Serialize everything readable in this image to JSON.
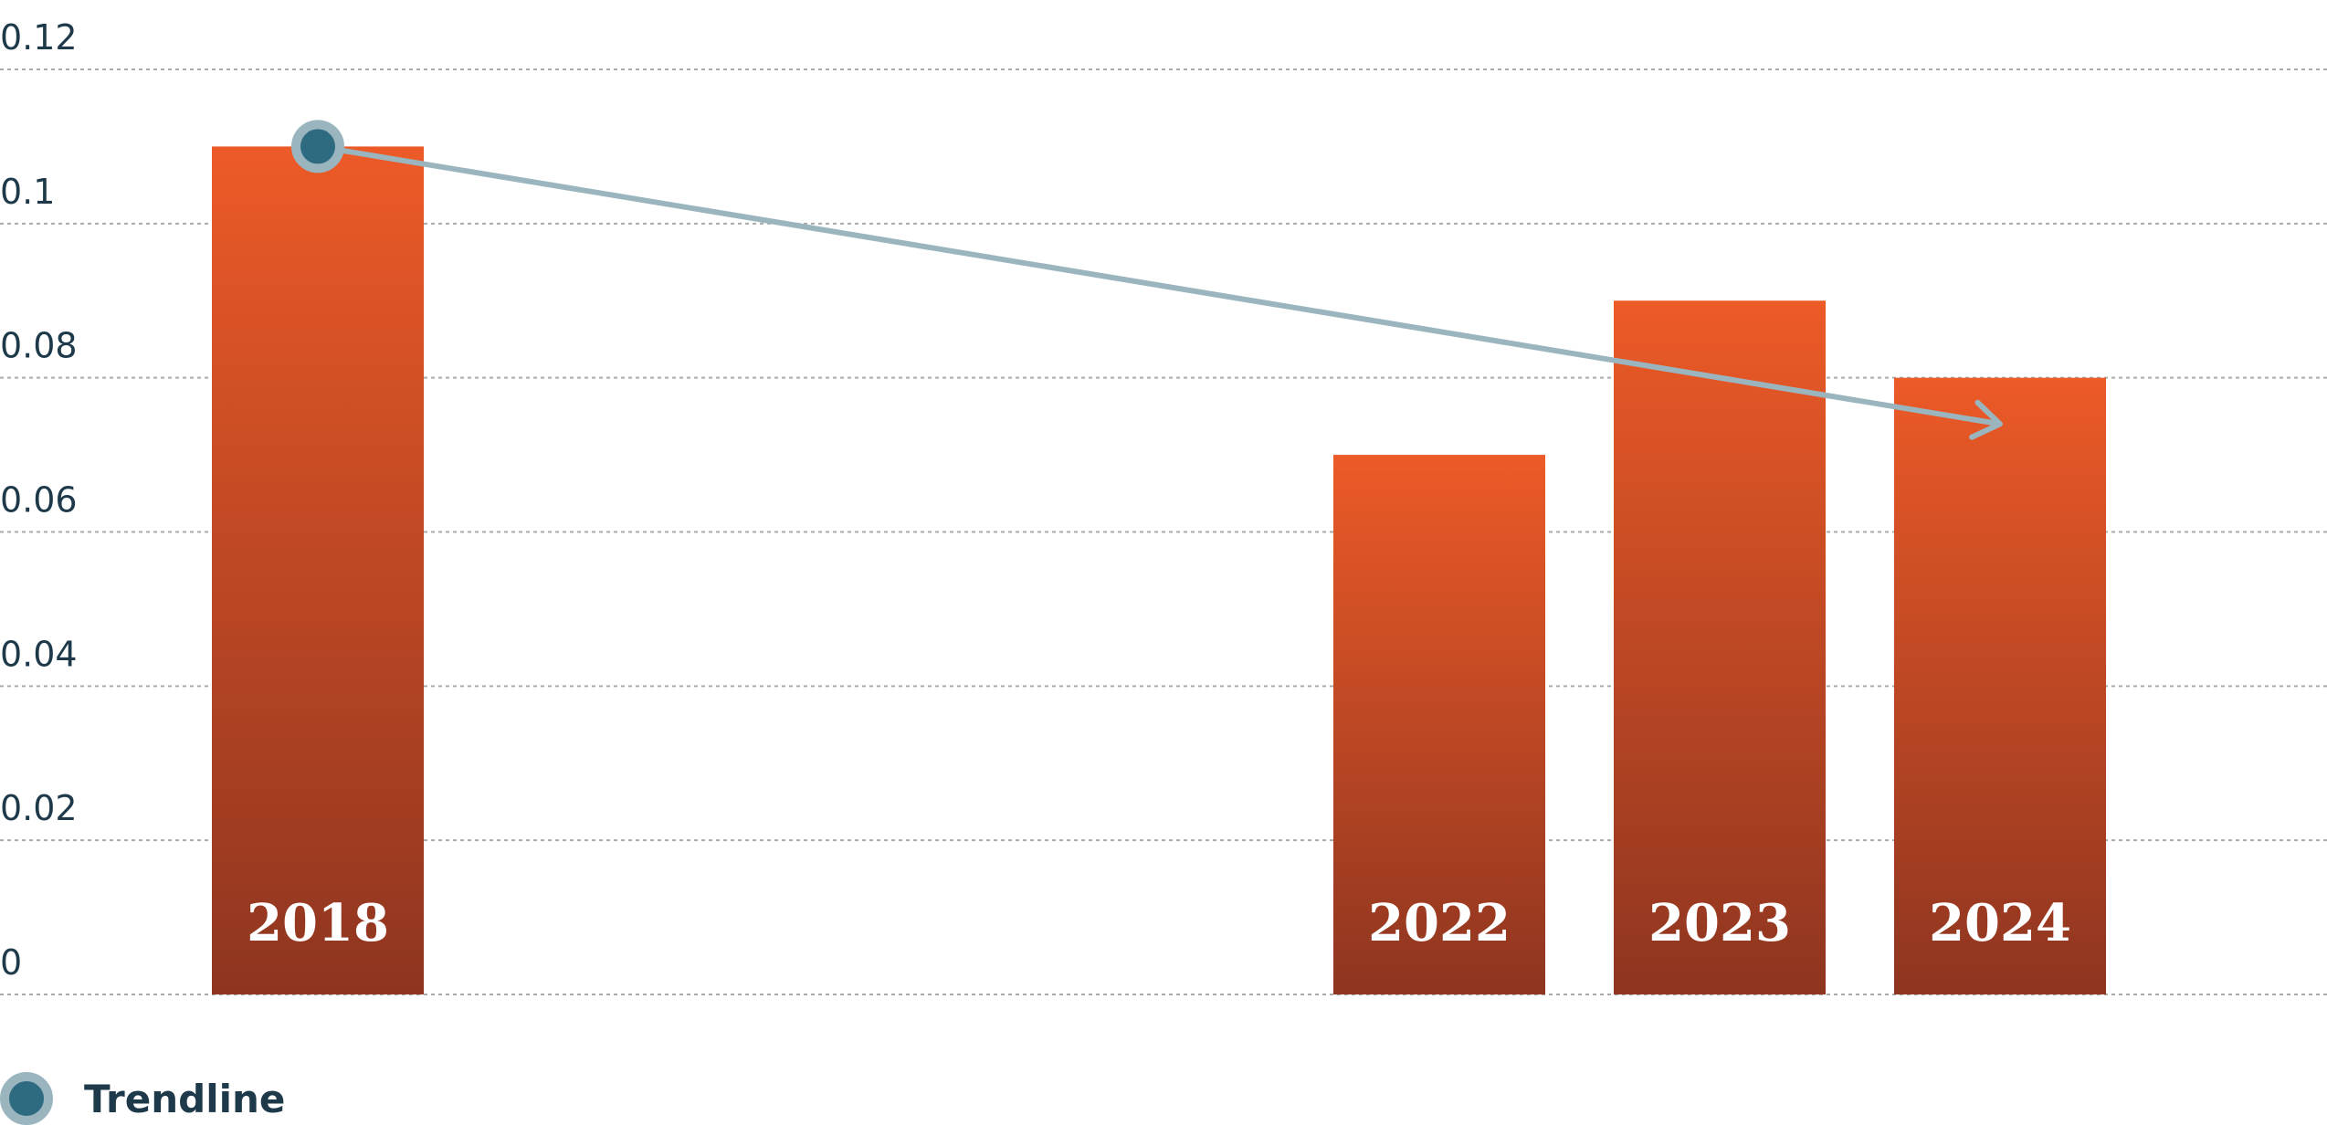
{
  "chart_data": {
    "type": "bar",
    "x": [
      2018,
      2022,
      2023,
      2024
    ],
    "values": [
      0.11,
      0.07,
      0.09,
      0.08
    ],
    "color": "#ec5a27",
    "ylim": [
      0,
      0.12
    ],
    "yticks": [
      0,
      0.02,
      0.04,
      0.06,
      0.08,
      0.1,
      0.12
    ],
    "grid": true,
    "trendline": {
      "name": "Trendline",
      "color": "#9bb5bf",
      "x": [
        2018,
        2024
      ],
      "values": [
        0.11,
        0.074
      ]
    }
  }
}
